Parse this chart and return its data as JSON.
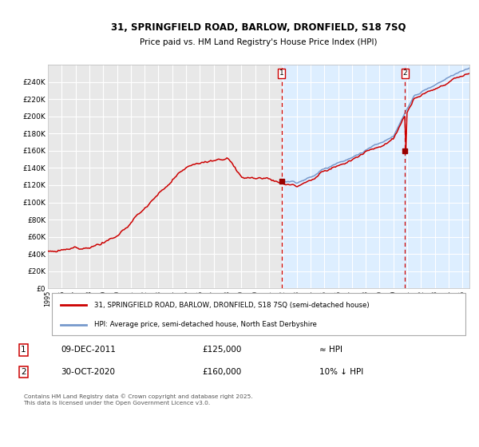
{
  "title_line1": "31, SPRINGFIELD ROAD, BARLOW, DRONFIELD, S18 7SQ",
  "title_line2": "Price paid vs. HM Land Registry's House Price Index (HPI)",
  "legend_line1": "31, SPRINGFIELD ROAD, BARLOW, DRONFIELD, S18 7SQ (semi-detached house)",
  "legend_line2": "HPI: Average price, semi-detached house, North East Derbyshire",
  "transaction1_date": "09-DEC-2011",
  "transaction1_price": "£125,000",
  "transaction1_hpi": "≈ HPI",
  "transaction2_date": "30-OCT-2020",
  "transaction2_price": "£160,000",
  "transaction2_hpi": "10% ↓ HPI",
  "footer": "Contains HM Land Registry data © Crown copyright and database right 2025.\nThis data is licensed under the Open Government Licence v3.0.",
  "ylabel_ticks": [
    "£0",
    "£20K",
    "£40K",
    "£60K",
    "£80K",
    "£100K",
    "£120K",
    "£140K",
    "£160K",
    "£180K",
    "£200K",
    "£220K",
    "£240K"
  ],
  "ylim": [
    0,
    260000
  ],
  "transaction1_year": 2011.92,
  "transaction1_value": 125000,
  "transaction2_year": 2020.83,
  "transaction2_value": 160000,
  "background_color": "#ffffff",
  "plot_bg_color": "#e8e8e8",
  "shaded_bg_color": "#ddeeff",
  "red_line_color": "#cc0000",
  "blue_line_color": "#7799cc",
  "grid_color": "#ffffff",
  "dashed_line_color": "#cc0000",
  "xlim_start": 1995,
  "xlim_end": 2025.5
}
